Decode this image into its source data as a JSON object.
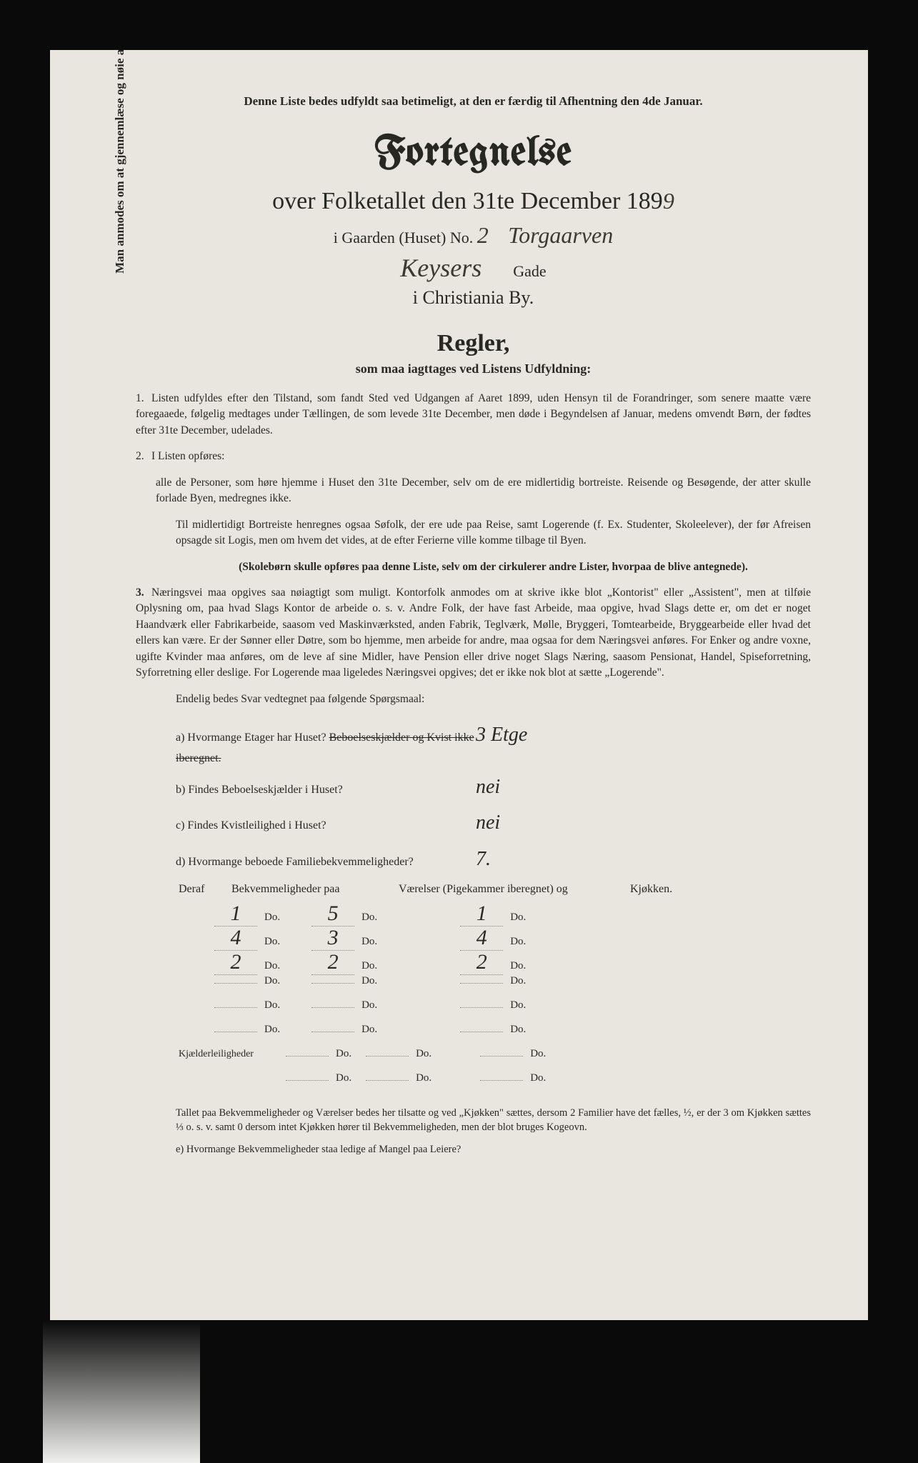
{
  "colors": {
    "scan_bg": "#0a0a0a",
    "paper_bg": "#e8e6df",
    "ink": "#282823",
    "handwriting": "#3a3a32"
  },
  "top_note": "Denne Liste bedes udfyldt saa betimeligt, at den er færdig til Afhentning den 4de Januar.",
  "main_title": "Fortegnelse",
  "subtitle_prefix": "over Folketallet den 31te December 189",
  "year_hw": "9",
  "gaarden_label": "i Gaarden (Huset) No.",
  "gaarden_no_hw": "2",
  "gaarden_name_hw": "Torgaarven",
  "gade_hw": "Keysers",
  "gade_label": "Gade",
  "city": "i Christiania By.",
  "regler_title": "Regler,",
  "regler_sub": "som maa iagttages ved Listens Udfyldning:",
  "rule1": "Listen udfyldes efter den Tilstand, som fandt Sted ved Udgangen af Aaret 1899, uden Hensyn til de Forandringer, som senere maatte være foregaaede, følgelig medtages under Tællingen, de som levede 31te December, men døde i Begyndelsen af Januar, medens omvendt Børn, der fødtes efter 31te December, udelades.",
  "rule2_head": "I Listen opføres:",
  "rule2_a": "alle de Personer, som høre hjemme i Huset den 31te December, selv om de ere midlertidig bortreiste. Reisende og Besøgende, der atter skulle forlade Byen, medregnes ikke.",
  "rule2_b": "Til midlertidigt Bortreiste henregnes ogsaa Søfolk, der ere ude paa Reise, samt Logerende (f. Ex. Studenter, Skoleelever), der før Afreisen opsagde sit Logis, men om hvem det vides, at de efter Ferierne ville komme tilbage til Byen.",
  "rule2_c": "(Skolebørn skulle opføres paa denne Liste, selv om der cirkulerer andre Lister, hvorpaa de blive antegnede).",
  "rule3": "Næringsvei maa opgives saa nøiagtigt som muligt. Kontorfolk anmodes om at skrive ikke blot „Kontorist\" eller „Assistent\", men at tilføie Oplysning om, paa hvad Slags Kontor de arbeide o. s. v. Andre Folk, der have fast Arbeide, maa opgive, hvad Slags dette er, om det er noget Haandværk eller Fabrikarbeide, saasom ved Maskinværksted, anden Fabrik, Teglværk, Mølle, Bryggeri, Tomtearbeide, Bryggearbeide eller hvad det ellers kan være. Er der Sønner eller Døtre, som bo hjemme, men arbeide for andre, maa ogsaa for dem Næringsvei anføres. For Enker og andre voxne, ugifte Kvinder maa anføres, om de leve af sine Midler, have Pension eller drive noget Slags Næring, saasom Pensionat, Handel, Spiseforretning, Syforretning eller deslige. For Logerende maa ligeledes Næringsvei opgives; det er ikke nok blot at sætte „Logerende\".",
  "endelig": "Endelig bedes Svar vedtegnet paa følgende Spørgsmaal:",
  "qa": {
    "a_label": "a) Hvormange Etager har Huset?",
    "a_strike": "Beboelseskjælder og Kvist ikke iberegnet.",
    "a_ans": "3 Etge",
    "b_label": "b) Findes Beboelseskjælder i Huset?",
    "b_ans": "nei",
    "c_label": "c) Findes Kvistleilighed i Huset?",
    "c_ans": "nei",
    "d_label": "d) Hvormange beboede Familiebekvemmeligheder?",
    "d_ans": "7."
  },
  "dwell": {
    "head_prefix": "Deraf",
    "head_bek": "Bekvemmeligheder paa",
    "head_vaer": "Værelser (Pigekammer iberegnet) og",
    "head_kjok": "Kjøkken.",
    "do": "Do.",
    "rows": [
      {
        "bek": "1",
        "vaer": "5",
        "kjok": "1"
      },
      {
        "bek": "4",
        "vaer": "3",
        "kjok": "4"
      },
      {
        "bek": "2",
        "vaer": "2",
        "kjok": "2"
      },
      {
        "bek": "",
        "vaer": "",
        "kjok": ""
      },
      {
        "bek": "",
        "vaer": "",
        "kjok": ""
      },
      {
        "bek": "",
        "vaer": "",
        "kjok": ""
      }
    ],
    "kjaelder_label": "Kjælderleiligheder"
  },
  "footnote": "Tallet paa Bekvemmeligheder og Værelser bedes her tilsatte og ved „Kjøkken\" sættes, dersom 2 Familier have det fælles, ½, er der 3 om Kjøkken sættes ⅓ o. s. v. samt 0 dersom intet Kjøkken hører til Bekvemmeligheden, men der blot bruges Kogeovn.",
  "qe": "e) Hvormange Bekvemmeligheder staa ledige af Mangel paa Leiere?",
  "vertical": "Man anmodes om at gjennemlæse og nøie at befolge de paa Fortegnelsen trykte Overskrifter og Anvisninger."
}
